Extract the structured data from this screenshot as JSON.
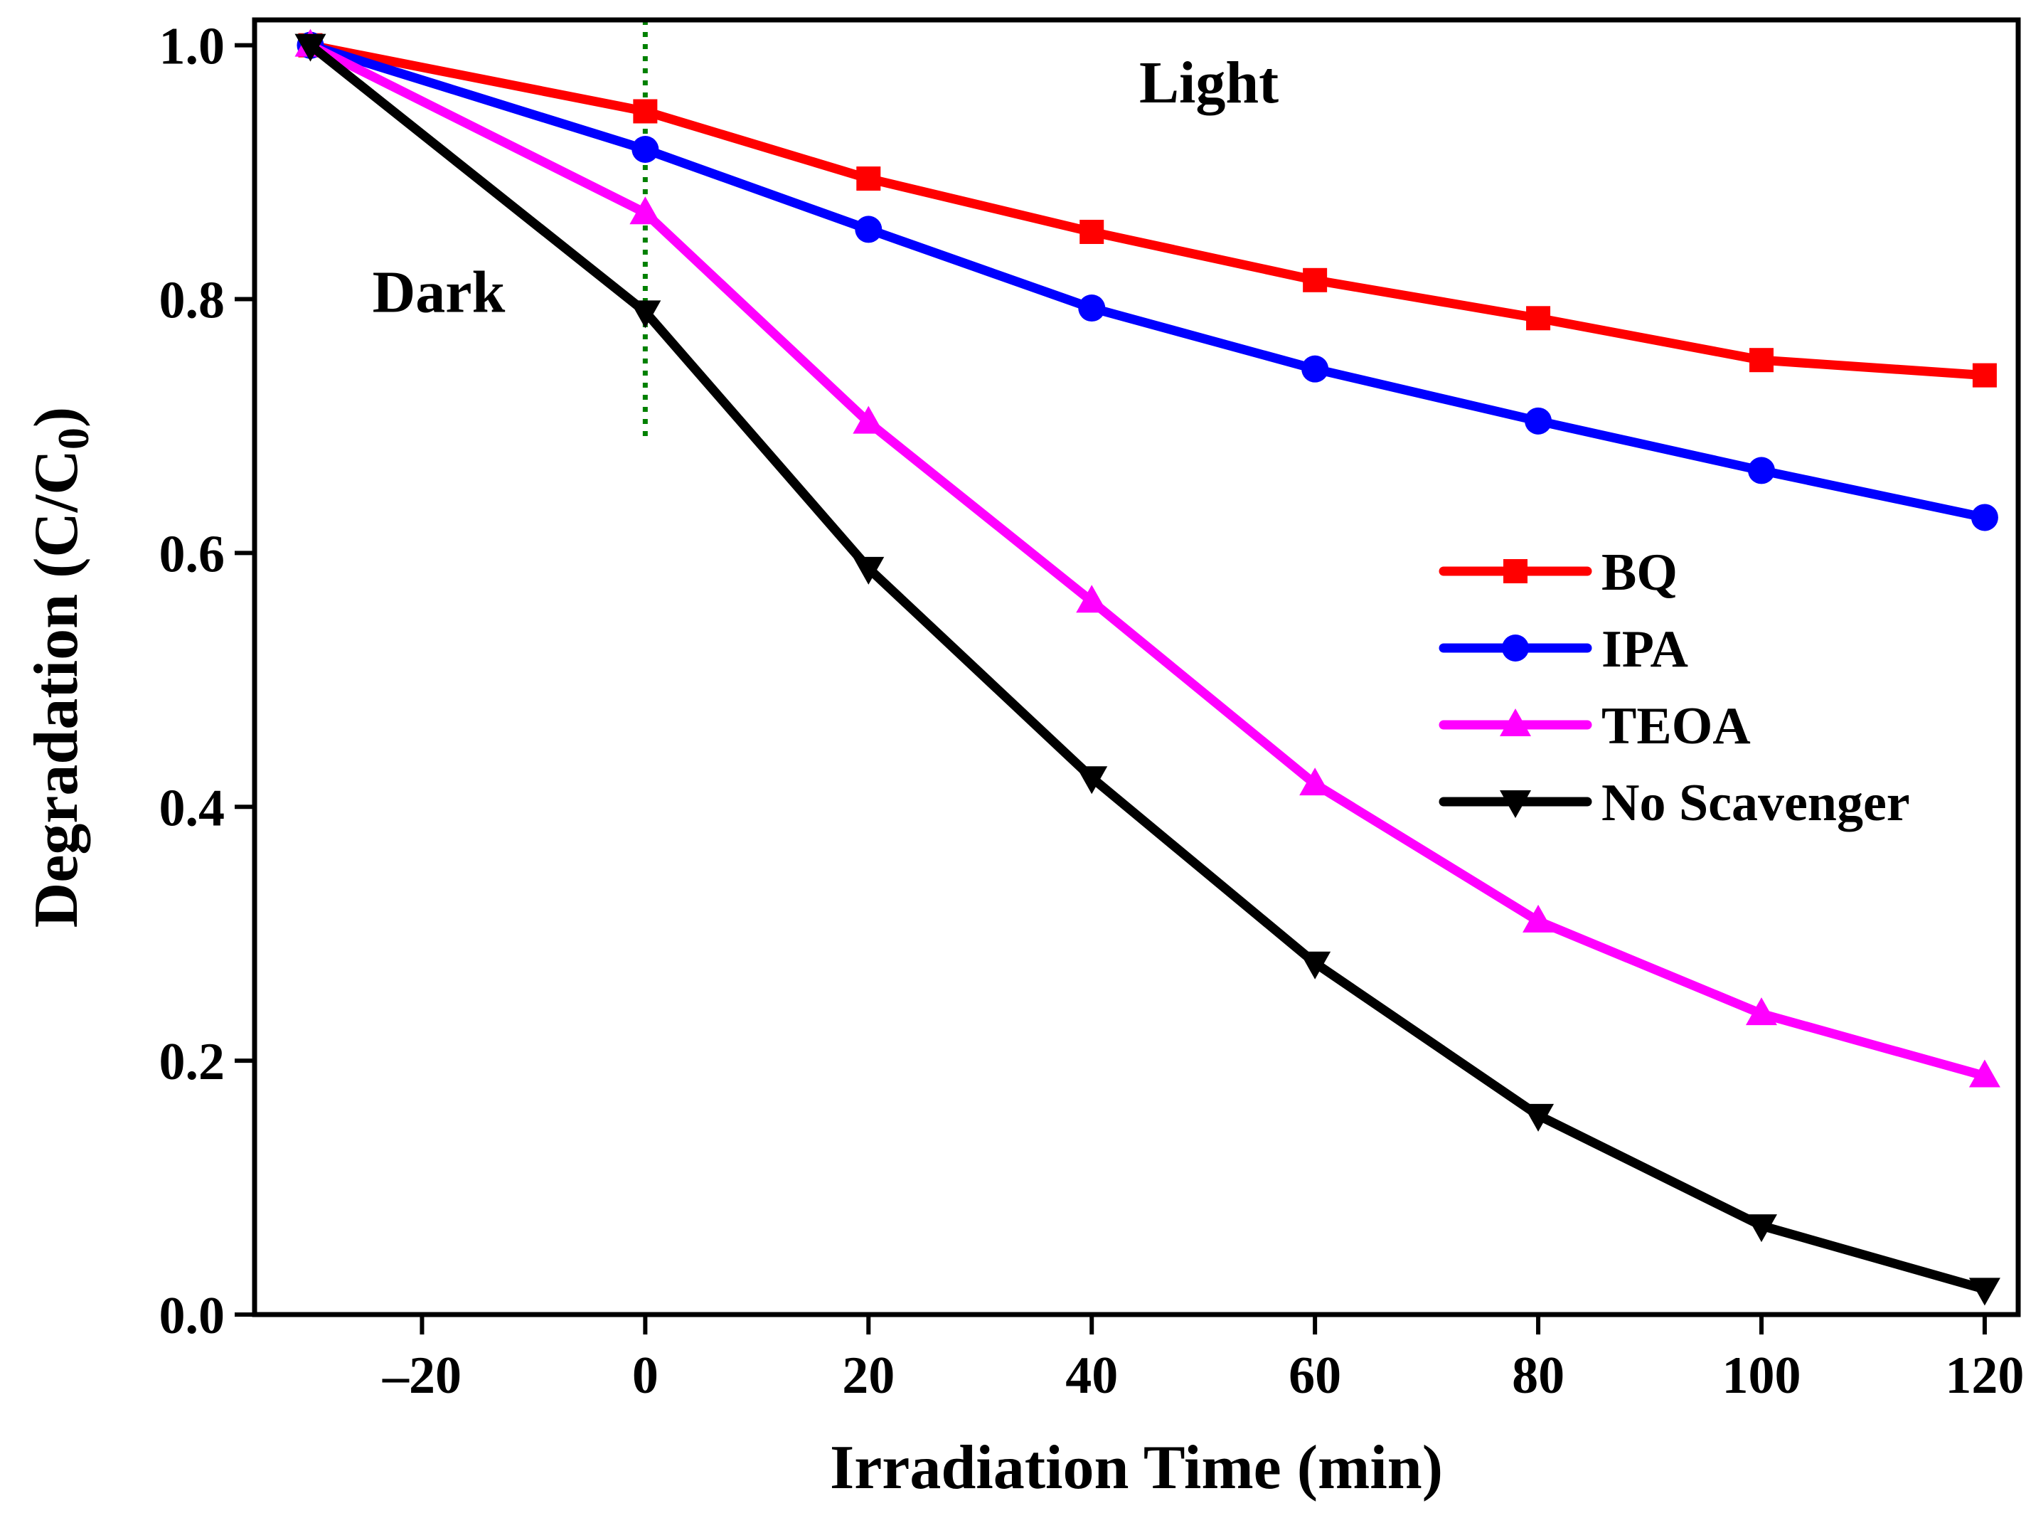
{
  "chart_data": {
    "type": "line",
    "title": "",
    "xlabel": "Irradiation Time (min)",
    "ylabel": {
      "main": "Degradation (C/C",
      "subscript": "0",
      "close": ")"
    },
    "xlim": [
      -35,
      123
    ],
    "ylim": [
      0,
      1.02
    ],
    "xticks": [
      -20,
      0,
      20,
      40,
      60,
      80,
      100,
      120
    ],
    "xtick_labels": [
      "–20",
      "0",
      "20",
      "40",
      "60",
      "80",
      "100",
      "120"
    ],
    "yticks": [
      0,
      0.2,
      0.4,
      0.6,
      0.8,
      1.0
    ],
    "ytick_labels": [
      "0.0",
      "0.2",
      "0.4",
      "0.6",
      "0.8",
      "1.0"
    ],
    "grid": false,
    "legend_position": "right",
    "x": [
      -30,
      0,
      20,
      40,
      60,
      80,
      100,
      120
    ],
    "series": [
      {
        "name": "BQ",
        "color": "#ff0000",
        "marker": "square",
        "values": [
          1.0,
          0.948,
          0.895,
          0.853,
          0.815,
          0.785,
          0.752,
          0.74
        ]
      },
      {
        "name": "IPA",
        "color": "#0000ff",
        "marker": "circle",
        "values": [
          1.0,
          0.918,
          0.855,
          0.793,
          0.745,
          0.704,
          0.665,
          0.628
        ]
      },
      {
        "name": "TEOA",
        "color": "#ff00ff",
        "marker": "triangle-up",
        "values": [
          1.0,
          0.868,
          0.703,
          0.562,
          0.418,
          0.31,
          0.237,
          0.188
        ]
      },
      {
        "name": "No Scavenger",
        "color": "#000000",
        "marker": "triangle-down",
        "values": [
          1.0,
          0.79,
          0.588,
          0.423,
          0.277,
          0.157,
          0.07,
          0.02
        ]
      }
    ],
    "divider": {
      "x": 0,
      "y_range": [
        0.69,
        1.02
      ],
      "color": "#008000",
      "style": "dotted"
    },
    "annotations": [
      {
        "text": "Dark",
        "x": -18.5,
        "y": 0.79
      },
      {
        "text": "Light",
        "x": 50.5,
        "y": 0.955
      }
    ]
  }
}
